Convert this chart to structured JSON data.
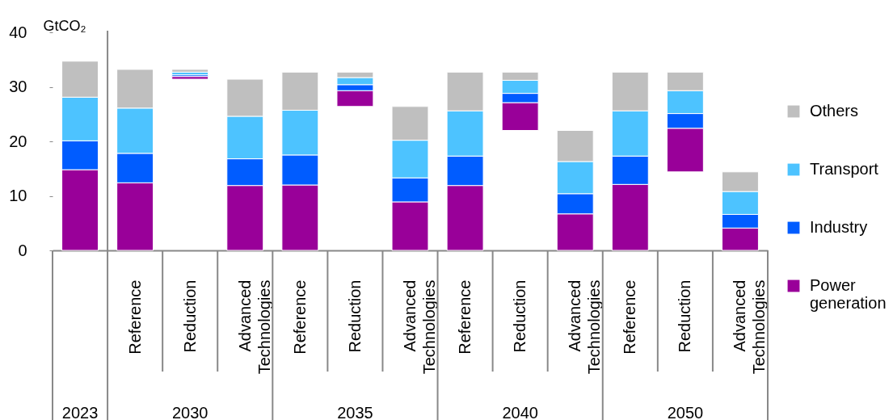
{
  "chart_data": {
    "type": "bar",
    "stacked": true,
    "categories": [
      null,
      "Reference",
      "Reduction",
      "Advanced Technologies",
      "Reference",
      "Reduction",
      "Advanced Technologies",
      "Reference",
      "Reduction",
      "Advanced Technologies",
      "Reference",
      "Reduction",
      "Advanced Technologies"
    ],
    "series": [
      {
        "name": "Power generation",
        "color": "#990099",
        "values": [
          14.8,
          12.4,
          0.5,
          11.9,
          12.0,
          2.9,
          8.9,
          11.9,
          5.1,
          6.7,
          12.1,
          8.0,
          4.1
        ],
        "base": [
          null,
          null,
          31.4,
          null,
          null,
          26.4,
          null,
          null,
          22.0,
          null,
          null,
          14.4,
          null
        ]
      },
      {
        "name": "Industry",
        "color": "#005cff",
        "values": [
          5.3,
          5.4,
          0.3,
          4.9,
          5.5,
          1.1,
          4.4,
          5.4,
          1.7,
          3.7,
          5.2,
          2.7,
          2.5
        ],
        "base": [
          null,
          null,
          31.9,
          null,
          null,
          29.3,
          null,
          null,
          27.1,
          null,
          null,
          22.4,
          null
        ]
      },
      {
        "name": "Transport",
        "color": "#4dc3ff",
        "values": [
          8.0,
          8.3,
          0.5,
          7.8,
          8.2,
          1.3,
          6.9,
          8.3,
          2.4,
          5.9,
          8.3,
          4.2,
          4.2
        ],
        "base": [
          null,
          null,
          32.2,
          null,
          null,
          30.4,
          null,
          null,
          28.8,
          null,
          null,
          25.1,
          null
        ]
      },
      {
        "name": "Others",
        "color": "#bfbfbf",
        "values": [
          6.6,
          7.1,
          0.5,
          6.8,
          7.0,
          1.0,
          6.2,
          7.1,
          1.5,
          5.7,
          7.1,
          3.4,
          3.6
        ],
        "base": [
          null,
          null,
          32.7,
          null,
          null,
          31.7,
          null,
          null,
          31.2,
          null,
          null,
          29.3,
          null
        ]
      }
    ],
    "ylabel": "GtCO₂",
    "ylim": [
      0,
      40
    ],
    "yticks": [
      0,
      10,
      20,
      30,
      40
    ],
    "legend": "right",
    "annotations": [
      "2023",
      "2030",
      "2035",
      "2040",
      "2050"
    ]
  }
}
